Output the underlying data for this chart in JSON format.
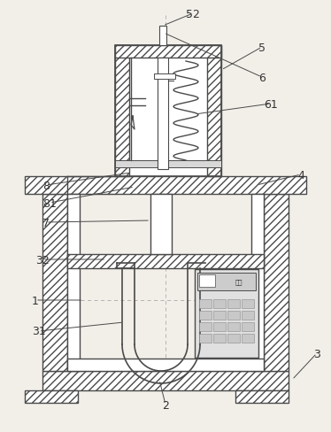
{
  "bg_color": "#f2efe9",
  "line_color": "#4a4a4a",
  "label_color": "#333333",
  "figsize": [
    3.74,
    4.89
  ],
  "dpi": 100
}
